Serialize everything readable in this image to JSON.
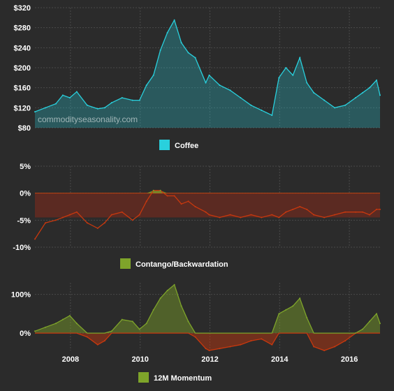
{
  "chart_data": [
    {
      "type": "area",
      "x": [
        2007.0,
        2007.3,
        2007.6,
        2007.8,
        2008.0,
        2008.2,
        2008.5,
        2008.8,
        2009.0,
        2009.2,
        2009.5,
        2009.8,
        2010.0,
        2010.2,
        2010.4,
        2010.6,
        2010.8,
        2011.0,
        2011.2,
        2011.4,
        2011.6,
        2011.9,
        2012.0,
        2012.3,
        2012.6,
        2012.9,
        2013.2,
        2013.5,
        2013.8,
        2014.0,
        2014.2,
        2014.4,
        2014.6,
        2014.8,
        2015.0,
        2015.3,
        2015.6,
        2015.9,
        2016.2,
        2016.4,
        2016.6,
        2016.8,
        2016.9
      ],
      "series": [
        {
          "name": "Coffee",
          "values": [
            112,
            120,
            128,
            145,
            140,
            152,
            125,
            118,
            120,
            130,
            140,
            135,
            135,
            165,
            185,
            235,
            270,
            295,
            250,
            230,
            220,
            170,
            185,
            165,
            155,
            140,
            125,
            115,
            105,
            180,
            200,
            185,
            220,
            170,
            150,
            135,
            120,
            125,
            140,
            150,
            160,
            175,
            145
          ]
        }
      ],
      "ylim": [
        80,
        320
      ],
      "y_ticks": [
        "$80",
        "$120",
        "$160",
        "$200",
        "$240",
        "$280",
        "$320"
      ],
      "watermark": "commodityseasonality.com",
      "legend": "Coffee",
      "color": "#29d0dd"
    },
    {
      "type": "area",
      "x": [
        2007.0,
        2007.3,
        2007.6,
        2007.8,
        2008.0,
        2008.2,
        2008.5,
        2008.8,
        2009.0,
        2009.2,
        2009.5,
        2009.8,
        2010.0,
        2010.2,
        2010.4,
        2010.6,
        2010.8,
        2011.0,
        2011.2,
        2011.4,
        2011.6,
        2011.9,
        2012.0,
        2012.3,
        2012.6,
        2012.9,
        2013.2,
        2013.5,
        2013.8,
        2014.0,
        2014.2,
        2014.4,
        2014.6,
        2014.8,
        2015.0,
        2015.3,
        2015.6,
        2015.9,
        2016.2,
        2016.4,
        2016.6,
        2016.8,
        2016.9
      ],
      "series": [
        {
          "name": "Contango/Backwardation",
          "values": [
            -8.5,
            -5.5,
            -5.0,
            -4.5,
            -4.0,
            -3.5,
            -5.5,
            -6.5,
            -5.5,
            -4.0,
            -3.5,
            -5.0,
            -4.0,
            -1.5,
            0.5,
            0.5,
            -0.5,
            -0.5,
            -2.0,
            -1.5,
            -2.5,
            -3.5,
            -4.0,
            -4.5,
            -4.0,
            -4.5,
            -4.0,
            -4.5,
            -4.0,
            -4.5,
            -3.5,
            -3.0,
            -2.5,
            -3.0,
            -4.0,
            -4.5,
            -4.0,
            -3.5,
            -3.5,
            -3.5,
            -4.0,
            -3.0,
            -3.0
          ]
        }
      ],
      "ylim": [
        -10,
        5
      ],
      "y_ticks": [
        "-10%",
        "-5%",
        "0%",
        "5%"
      ],
      "legend": "Contango/Backwardation",
      "color": "#c8380e",
      "band_color": "#5b2a22"
    },
    {
      "type": "area",
      "x": [
        2007.0,
        2007.3,
        2007.6,
        2007.8,
        2008.0,
        2008.2,
        2008.5,
        2008.8,
        2009.0,
        2009.2,
        2009.5,
        2009.8,
        2010.0,
        2010.2,
        2010.4,
        2010.6,
        2010.8,
        2011.0,
        2011.2,
        2011.4,
        2011.6,
        2011.9,
        2012.0,
        2012.3,
        2012.6,
        2012.9,
        2013.2,
        2013.5,
        2013.8,
        2014.0,
        2014.2,
        2014.4,
        2014.6,
        2014.8,
        2015.0,
        2015.3,
        2015.6,
        2015.9,
        2016.2,
        2016.4,
        2016.6,
        2016.8,
        2016.9
      ],
      "series": [
        {
          "name": "12M Momentum",
          "values": [
            5,
            15,
            25,
            35,
            45,
            25,
            -10,
            -30,
            -20,
            5,
            35,
            30,
            10,
            25,
            60,
            90,
            110,
            125,
            70,
            30,
            -10,
            -40,
            -45,
            -40,
            -35,
            -30,
            -20,
            -15,
            -30,
            50,
            60,
            70,
            90,
            40,
            -35,
            -45,
            -35,
            -20,
            0,
            10,
            30,
            50,
            25
          ]
        }
      ],
      "ylim": [
        -45,
        130
      ],
      "y_ticks": [
        "0%",
        "100%"
      ],
      "x_ticks": [
        "2008",
        "2010",
        "2012",
        "2014",
        "2016"
      ],
      "legend": "12M Momentum",
      "pos_color": "#7ea42a",
      "neg_color": "#c8380e"
    }
  ]
}
